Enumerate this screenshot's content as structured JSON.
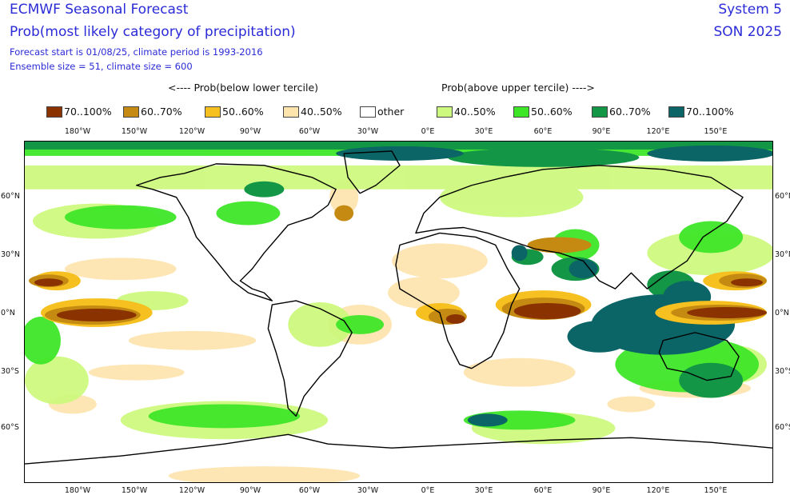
{
  "header": {
    "title": "ECMWF Seasonal Forecast",
    "subtitle": "Prob(most likely category of precipitation)",
    "line1": "Forecast start is 01/08/25, climate period is 1993-2016",
    "line2": "Ensemble size = 51, climate size = 600",
    "system": "System 5",
    "season": "SON 2025"
  },
  "legend": {
    "below_label": "<---- Prob(below lower tercile)",
    "above_label": "Prob(above upper tercile) ---->",
    "items": [
      {
        "label": "70..100%",
        "color": "#8a3300"
      },
      {
        "label": "60..70%",
        "color": "#c58a12"
      },
      {
        "label": "50..60%",
        "color": "#f5c020"
      },
      {
        "label": "40..50%",
        "color": "#fde3ac"
      },
      {
        "label": "other",
        "color": "#ffffff"
      },
      {
        "label": "40..50%",
        "color": "#cdf97e"
      },
      {
        "label": "50..60%",
        "color": "#3ee628"
      },
      {
        "label": "60..70%",
        "color": "#139645"
      },
      {
        "label": "70..100%",
        "color": "#0b6466"
      }
    ]
  },
  "axes": {
    "lon_ticks": [
      "180°W",
      "150°W",
      "120°W",
      "90°W",
      "60°W",
      "30°W",
      "0°E",
      "30°E",
      "60°E",
      "90°E",
      "120°E",
      "150°E"
    ],
    "lat_ticks": [
      "60°N",
      "30°N",
      "0°N",
      "30°S",
      "60°S"
    ]
  }
}
